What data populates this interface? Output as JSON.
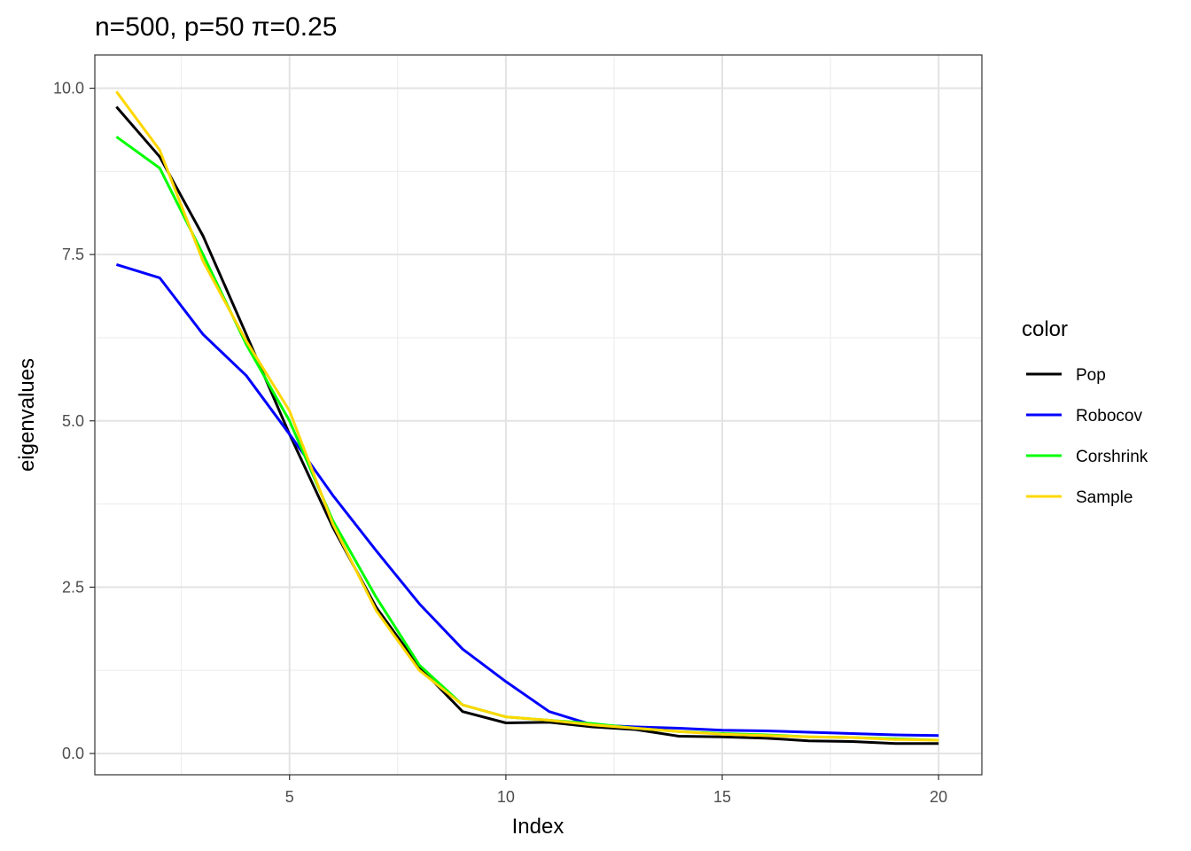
{
  "chart_data": {
    "type": "line",
    "title": "n=500, p=50 π=0.25",
    "xlabel": "Index",
    "ylabel": "eigenvalues",
    "xlim": [
      0.5,
      21.0
    ],
    "ylim": [
      -0.32,
      10.5
    ],
    "x_ticks": [
      5,
      10,
      15,
      20
    ],
    "x_tick_labels": [
      "5",
      "10",
      "15",
      "20"
    ],
    "y_ticks": [
      0,
      2.5,
      5,
      7.5,
      10
    ],
    "y_tick_labels": [
      "0.0",
      "2.5",
      "5.0",
      "7.5",
      "10.0"
    ],
    "grid": true,
    "legend": {
      "title": "color",
      "position": "right"
    },
    "x": [
      1,
      2,
      3,
      4,
      5,
      6,
      7,
      8,
      9,
      10,
      11,
      12,
      13,
      14,
      15,
      16,
      17,
      18,
      19,
      20
    ],
    "series": [
      {
        "name": "Pop",
        "color": "#000000",
        "values": [
          9.72,
          8.97,
          7.78,
          6.3,
          4.8,
          3.4,
          2.2,
          1.3,
          0.63,
          0.46,
          0.47,
          0.4,
          0.36,
          0.26,
          0.25,
          0.23,
          0.19,
          0.18,
          0.15,
          0.15
        ]
      },
      {
        "name": "Robocov",
        "color": "#0000ff",
        "values": [
          7.35,
          7.15,
          6.3,
          5.68,
          4.8,
          3.88,
          3.05,
          2.25,
          1.57,
          1.08,
          0.63,
          0.43,
          0.4,
          0.38,
          0.35,
          0.34,
          0.32,
          0.3,
          0.28,
          0.27
        ]
      },
      {
        "name": "Corshrink",
        "color": "#00ff00",
        "values": [
          9.27,
          8.8,
          7.5,
          6.15,
          5.0,
          3.5,
          2.35,
          1.33,
          0.73,
          0.55,
          0.5,
          0.45,
          0.38,
          0.33,
          0.3,
          0.28,
          0.25,
          0.24,
          0.22,
          0.2
        ]
      },
      {
        "name": "Sample",
        "color": "#ffd700",
        "values": [
          9.95,
          9.07,
          7.4,
          6.2,
          5.15,
          3.45,
          2.15,
          1.25,
          0.73,
          0.55,
          0.5,
          0.43,
          0.38,
          0.33,
          0.29,
          0.27,
          0.25,
          0.24,
          0.21,
          0.2
        ]
      }
    ]
  }
}
